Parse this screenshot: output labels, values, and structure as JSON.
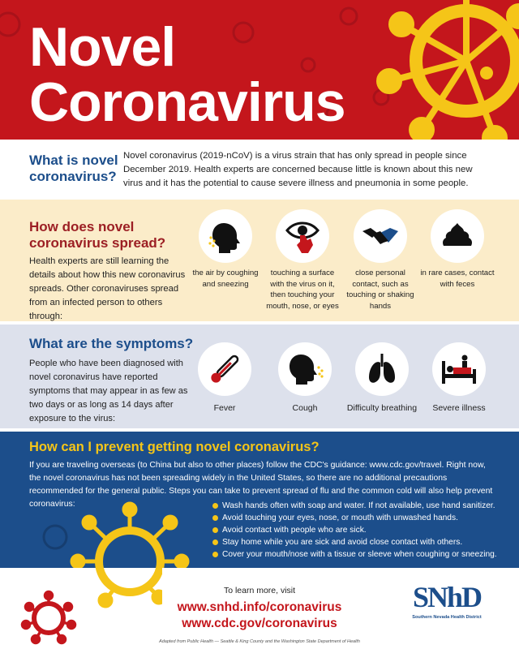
{
  "header": {
    "title_line1": "Novel",
    "title_line2": "Coronavirus",
    "colors": {
      "red": "#c4161c",
      "yellow": "#f5c518"
    }
  },
  "what_is": {
    "question": "What is novel coronavirus?",
    "answer": "Novel coronavirus (2019-nCoV) is a virus strain that has only spread in people since December 2019. Health experts are concerned because little is known about this new virus and it has the potential to cause severe illness and pneumonia in some people."
  },
  "spread": {
    "question": "How does novel coronavirus spread?",
    "description": "Health experts are still learning the details about how this new coronavirus spreads. Other coronaviruses spread from an infected person to others through:",
    "items": [
      {
        "icon": "coughing-head-icon",
        "caption": "the air by coughing and sneezing"
      },
      {
        "icon": "eye-hand-icon",
        "caption": "touching a surface with the virus on it, then touching your mouth, nose, or eyes"
      },
      {
        "icon": "handshake-icon",
        "caption": "close personal contact, such as touching or shaking hands"
      },
      {
        "icon": "feces-icon",
        "caption": "in rare cases, contact with feces"
      }
    ]
  },
  "symptoms": {
    "question": "What are the symptoms?",
    "description": "People who have been diagnosed with novel coronavirus have reported symptoms that may appear in as few as two days or as long as 14 days after exposure to the virus:",
    "items": [
      {
        "icon": "thermometer-icon",
        "label": "Fever"
      },
      {
        "icon": "cough-icon",
        "label": "Cough"
      },
      {
        "icon": "lungs-icon",
        "label": "Difficulty breathing"
      },
      {
        "icon": "sick-bed-icon",
        "label": "Severe illness"
      }
    ]
  },
  "prevent": {
    "question": "How can I prevent getting novel coronavirus?",
    "description": "If you are traveling overseas (to China but also to other places) follow the CDC's guidance: www.cdc.gov/travel. Right now, the novel coronavirus has not been spreading widely in the United States, so there are no additional precautions recommended for the general public. Steps you can take to prevent spread of flu and the common cold will also help prevent coronavirus:",
    "tips": [
      "Wash hands often with soap and water. If not available, use hand sanitizer.",
      "Avoid touching your eyes, nose, or mouth with unwashed hands.",
      "Avoid contact with people who are sick.",
      "Stay home while you are sick and avoid close contact with others.",
      "Cover your mouth/nose with a tissue or sleeve when coughing or sneezing."
    ]
  },
  "footer": {
    "learn_more": "To learn more, visit",
    "url1": "www.snhd.info/coronavirus",
    "url2": "www.cdc.gov/coronavirus",
    "adapted": "Adapted from Public Health — Seattle & King County and the Washington State Department of Health",
    "logo_letters": "SNhD",
    "logo_name": "Southern Nevada Health District"
  }
}
